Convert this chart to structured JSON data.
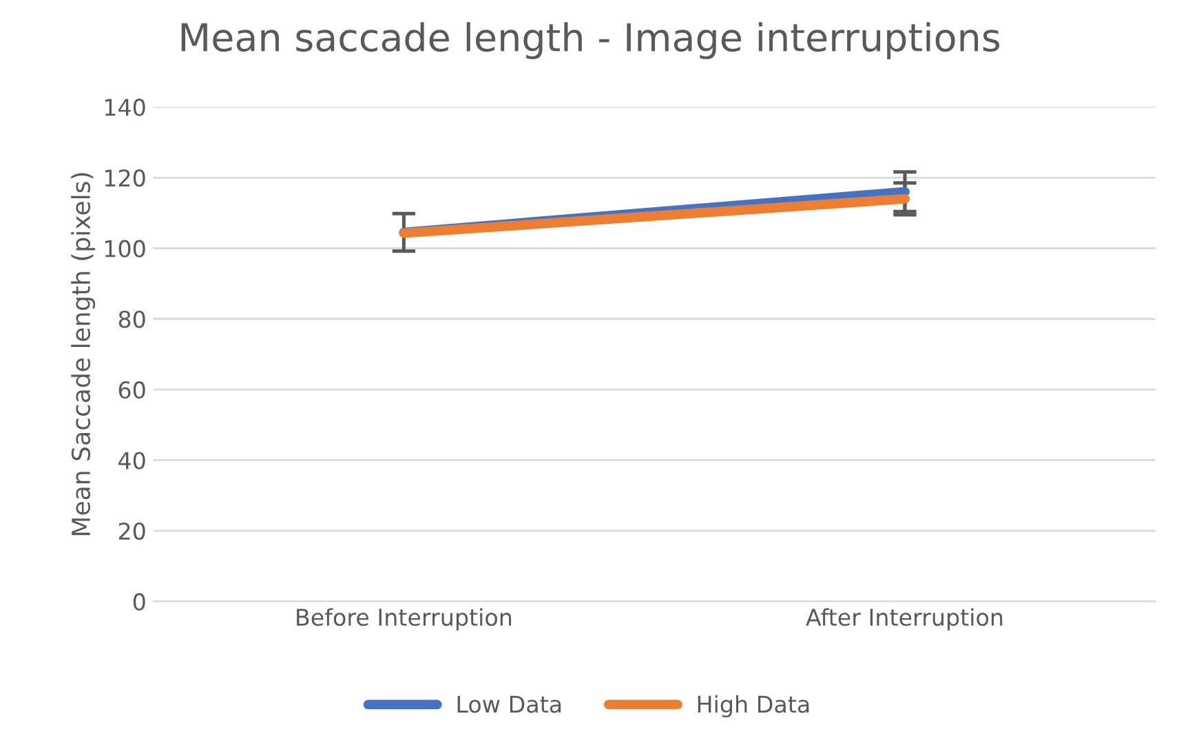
{
  "chart_data": {
    "type": "line",
    "title": "Mean saccade length - Image interruptions",
    "ylabel": "Mean Saccade length (pixels)",
    "categories": [
      "Before Interruption",
      "After Interruption"
    ],
    "series": [
      {
        "name": "Low Data",
        "color": "#4472c4",
        "values": [
          104.5,
          116
        ],
        "errors": [
          5.3,
          5.6
        ]
      },
      {
        "name": "High Data",
        "color": "#ed7d31",
        "values": [
          104.3,
          114
        ],
        "errors": [
          null,
          4.5
        ]
      }
    ],
    "ylim": [
      0,
      140
    ],
    "yticks": [
      0,
      20,
      40,
      60,
      80,
      100,
      120,
      140
    ],
    "grid": "y",
    "legend": "bottom",
    "marker": "none",
    "line_style": "solid"
  }
}
